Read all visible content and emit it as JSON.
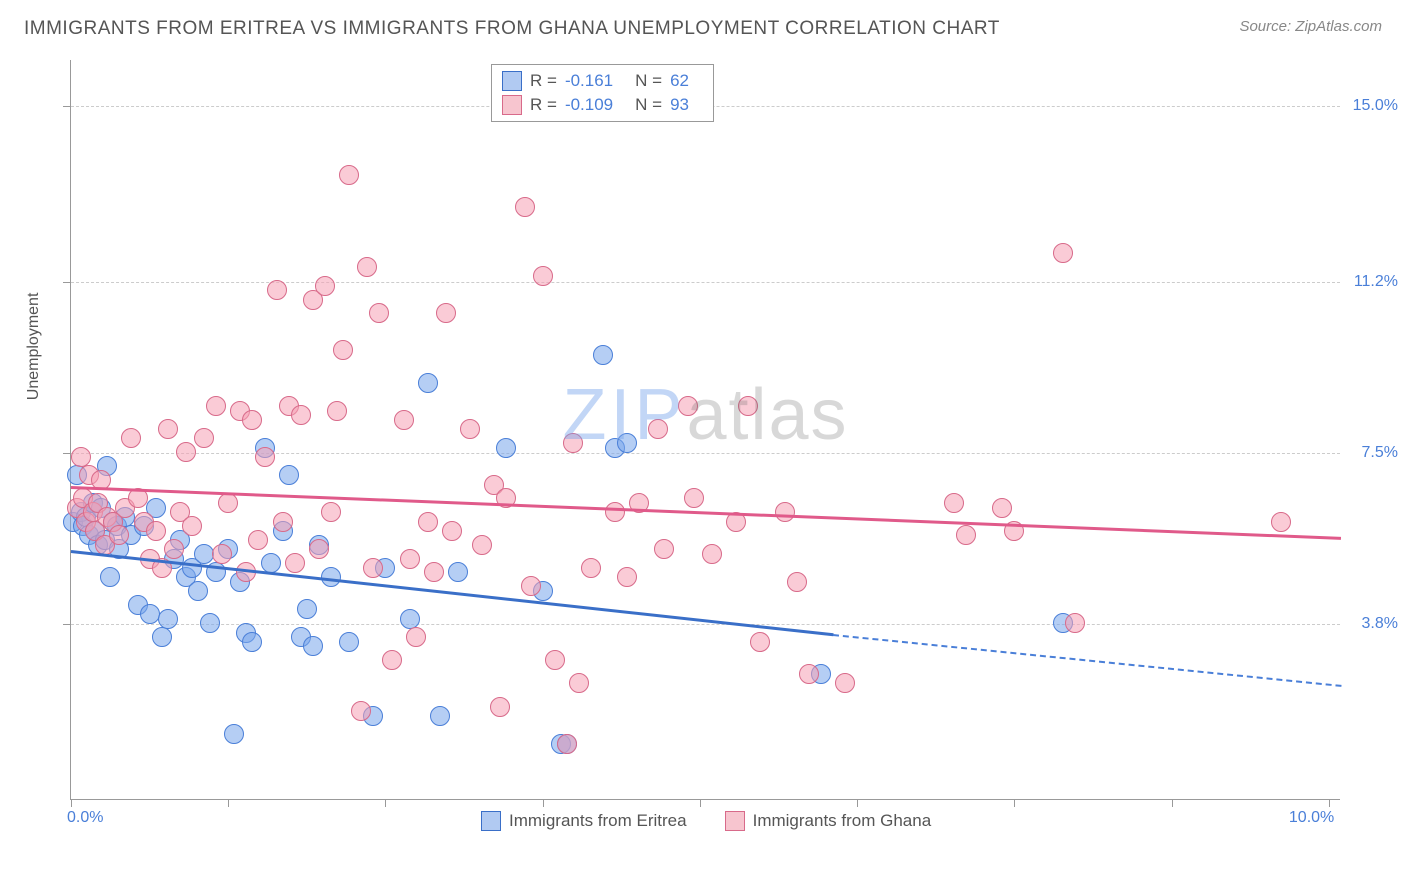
{
  "title": "IMMIGRANTS FROM ERITREA VS IMMIGRANTS FROM GHANA UNEMPLOYMENT CORRELATION CHART",
  "source": "Source: ZipAtlas.com",
  "watermark": {
    "left": "ZIP",
    "right": "atlas"
  },
  "chart": {
    "type": "scatter",
    "background_color": "#ffffff",
    "grid_color": "#cccccc",
    "axis_color": "#999999",
    "text_color": "#555555",
    "value_color": "#4a7fd8",
    "ylabel": "Unemployment",
    "xlim": [
      0,
      10.5
    ],
    "ylim": [
      0,
      16
    ],
    "ytick_labels": [
      {
        "v": 3.8,
        "label": "3.8%"
      },
      {
        "v": 7.5,
        "label": "7.5%"
      },
      {
        "v": 11.2,
        "label": "11.2%"
      },
      {
        "v": 15.0,
        "label": "15.0%"
      }
    ],
    "xtick_positions": [
      0,
      1.3,
      2.6,
      3.9,
      5.2,
      6.5,
      7.8,
      9.1,
      10.4
    ],
    "xtick_labels": [
      {
        "v": 0,
        "label": "0.0%"
      },
      {
        "v": 10.4,
        "label": "10.0%"
      }
    ],
    "marker_radius": 10,
    "series": [
      {
        "name": "Immigrants from Eritrea",
        "color": "#4a7fd8",
        "fill": "rgba(120,165,235,0.55)",
        "class": "blue",
        "R": "-0.161",
        "N": "62",
        "trend": {
          "x1": 0,
          "y1": 5.4,
          "x2_solid": 6.3,
          "y2_solid": 3.6,
          "x2": 10.5,
          "y2": 2.5
        },
        "points": [
          [
            0.02,
            6.0
          ],
          [
            0.05,
            7.0
          ],
          [
            0.08,
            6.2
          ],
          [
            0.1,
            5.9
          ],
          [
            0.12,
            6.1
          ],
          [
            0.15,
            5.7
          ],
          [
            0.18,
            6.4
          ],
          [
            0.2,
            5.8
          ],
          [
            0.22,
            5.5
          ],
          [
            0.25,
            6.3
          ],
          [
            0.28,
            5.6
          ],
          [
            0.3,
            7.2
          ],
          [
            0.32,
            4.8
          ],
          [
            0.35,
            6.0
          ],
          [
            0.38,
            5.9
          ],
          [
            0.4,
            5.4
          ],
          [
            0.45,
            6.1
          ],
          [
            0.5,
            5.7
          ],
          [
            0.55,
            4.2
          ],
          [
            0.6,
            5.9
          ],
          [
            0.65,
            4.0
          ],
          [
            0.7,
            6.3
          ],
          [
            0.75,
            3.5
          ],
          [
            0.8,
            3.9
          ],
          [
            0.85,
            5.2
          ],
          [
            0.9,
            5.6
          ],
          [
            0.95,
            4.8
          ],
          [
            1.0,
            5.0
          ],
          [
            1.05,
            4.5
          ],
          [
            1.1,
            5.3
          ],
          [
            1.15,
            3.8
          ],
          [
            1.2,
            4.9
          ],
          [
            1.3,
            5.4
          ],
          [
            1.35,
            1.4
          ],
          [
            1.4,
            4.7
          ],
          [
            1.45,
            3.6
          ],
          [
            1.5,
            3.4
          ],
          [
            1.6,
            7.6
          ],
          [
            1.65,
            5.1
          ],
          [
            1.75,
            5.8
          ],
          [
            1.8,
            7.0
          ],
          [
            1.9,
            3.5
          ],
          [
            1.95,
            4.1
          ],
          [
            2.0,
            3.3
          ],
          [
            2.05,
            5.5
          ],
          [
            2.15,
            4.8
          ],
          [
            2.3,
            3.4
          ],
          [
            2.5,
            1.8
          ],
          [
            2.6,
            5.0
          ],
          [
            2.8,
            3.9
          ],
          [
            2.95,
            9.0
          ],
          [
            3.05,
            1.8
          ],
          [
            3.2,
            4.9
          ],
          [
            3.6,
            7.6
          ],
          [
            3.9,
            4.5
          ],
          [
            4.05,
            1.2
          ],
          [
            4.1,
            1.2
          ],
          [
            4.4,
            9.6
          ],
          [
            4.5,
            7.6
          ],
          [
            4.6,
            7.7
          ],
          [
            6.2,
            2.7
          ],
          [
            8.2,
            3.8
          ]
        ]
      },
      {
        "name": "Immigrants from Ghana",
        "color": "#d86a8a",
        "fill": "rgba(245,160,180,0.55)",
        "class": "pink",
        "R": "-0.109",
        "N": "93",
        "trend": {
          "x1": 0,
          "y1": 6.8,
          "x2_solid": 10.5,
          "y2_solid": 5.7,
          "x2": 10.5,
          "y2": 5.7
        },
        "points": [
          [
            0.05,
            6.3
          ],
          [
            0.08,
            7.4
          ],
          [
            0.1,
            6.5
          ],
          [
            0.12,
            6.0
          ],
          [
            0.15,
            7.0
          ],
          [
            0.18,
            6.2
          ],
          [
            0.2,
            5.8
          ],
          [
            0.22,
            6.4
          ],
          [
            0.25,
            6.9
          ],
          [
            0.28,
            5.5
          ],
          [
            0.3,
            6.1
          ],
          [
            0.35,
            6.0
          ],
          [
            0.4,
            5.7
          ],
          [
            0.45,
            6.3
          ],
          [
            0.5,
            7.8
          ],
          [
            0.55,
            6.5
          ],
          [
            0.6,
            6.0
          ],
          [
            0.65,
            5.2
          ],
          [
            0.7,
            5.8
          ],
          [
            0.75,
            5.0
          ],
          [
            0.8,
            8.0
          ],
          [
            0.85,
            5.4
          ],
          [
            0.9,
            6.2
          ],
          [
            0.95,
            7.5
          ],
          [
            1.0,
            5.9
          ],
          [
            1.1,
            7.8
          ],
          [
            1.2,
            8.5
          ],
          [
            1.25,
            5.3
          ],
          [
            1.3,
            6.4
          ],
          [
            1.4,
            8.4
          ],
          [
            1.45,
            4.9
          ],
          [
            1.5,
            8.2
          ],
          [
            1.55,
            5.6
          ],
          [
            1.6,
            7.4
          ],
          [
            1.7,
            11.0
          ],
          [
            1.75,
            6.0
          ],
          [
            1.8,
            8.5
          ],
          [
            1.85,
            5.1
          ],
          [
            1.9,
            8.3
          ],
          [
            2.0,
            10.8
          ],
          [
            2.05,
            5.4
          ],
          [
            2.1,
            11.1
          ],
          [
            2.15,
            6.2
          ],
          [
            2.2,
            8.4
          ],
          [
            2.25,
            9.7
          ],
          [
            2.3,
            13.5
          ],
          [
            2.4,
            1.9
          ],
          [
            2.45,
            11.5
          ],
          [
            2.5,
            5.0
          ],
          [
            2.55,
            10.5
          ],
          [
            2.65,
            3.0
          ],
          [
            2.75,
            8.2
          ],
          [
            2.8,
            5.2
          ],
          [
            2.85,
            3.5
          ],
          [
            2.95,
            6.0
          ],
          [
            3.0,
            4.9
          ],
          [
            3.1,
            10.5
          ],
          [
            3.15,
            5.8
          ],
          [
            3.3,
            8.0
          ],
          [
            3.4,
            5.5
          ],
          [
            3.5,
            6.8
          ],
          [
            3.55,
            2.0
          ],
          [
            3.6,
            6.5
          ],
          [
            3.75,
            12.8
          ],
          [
            3.8,
            4.6
          ],
          [
            3.9,
            11.3
          ],
          [
            4.0,
            3.0
          ],
          [
            4.1,
            1.2
          ],
          [
            4.15,
            7.7
          ],
          [
            4.2,
            2.5
          ],
          [
            4.3,
            5.0
          ],
          [
            4.5,
            6.2
          ],
          [
            4.6,
            4.8
          ],
          [
            4.7,
            6.4
          ],
          [
            4.85,
            8.0
          ],
          [
            4.9,
            5.4
          ],
          [
            5.1,
            8.5
          ],
          [
            5.15,
            6.5
          ],
          [
            5.3,
            5.3
          ],
          [
            5.5,
            6.0
          ],
          [
            5.6,
            8.5
          ],
          [
            5.7,
            3.4
          ],
          [
            5.9,
            6.2
          ],
          [
            6.0,
            4.7
          ],
          [
            6.1,
            2.7
          ],
          [
            6.4,
            2.5
          ],
          [
            7.3,
            6.4
          ],
          [
            7.4,
            5.7
          ],
          [
            7.7,
            6.3
          ],
          [
            7.8,
            5.8
          ],
          [
            8.2,
            11.8
          ],
          [
            8.3,
            3.8
          ],
          [
            10.0,
            6.0
          ]
        ]
      }
    ],
    "legend_bottom": [
      {
        "label": "Immigrants from Eritrea",
        "class": "blue"
      },
      {
        "label": "Immigrants from Ghana",
        "class": "pink"
      }
    ]
  }
}
